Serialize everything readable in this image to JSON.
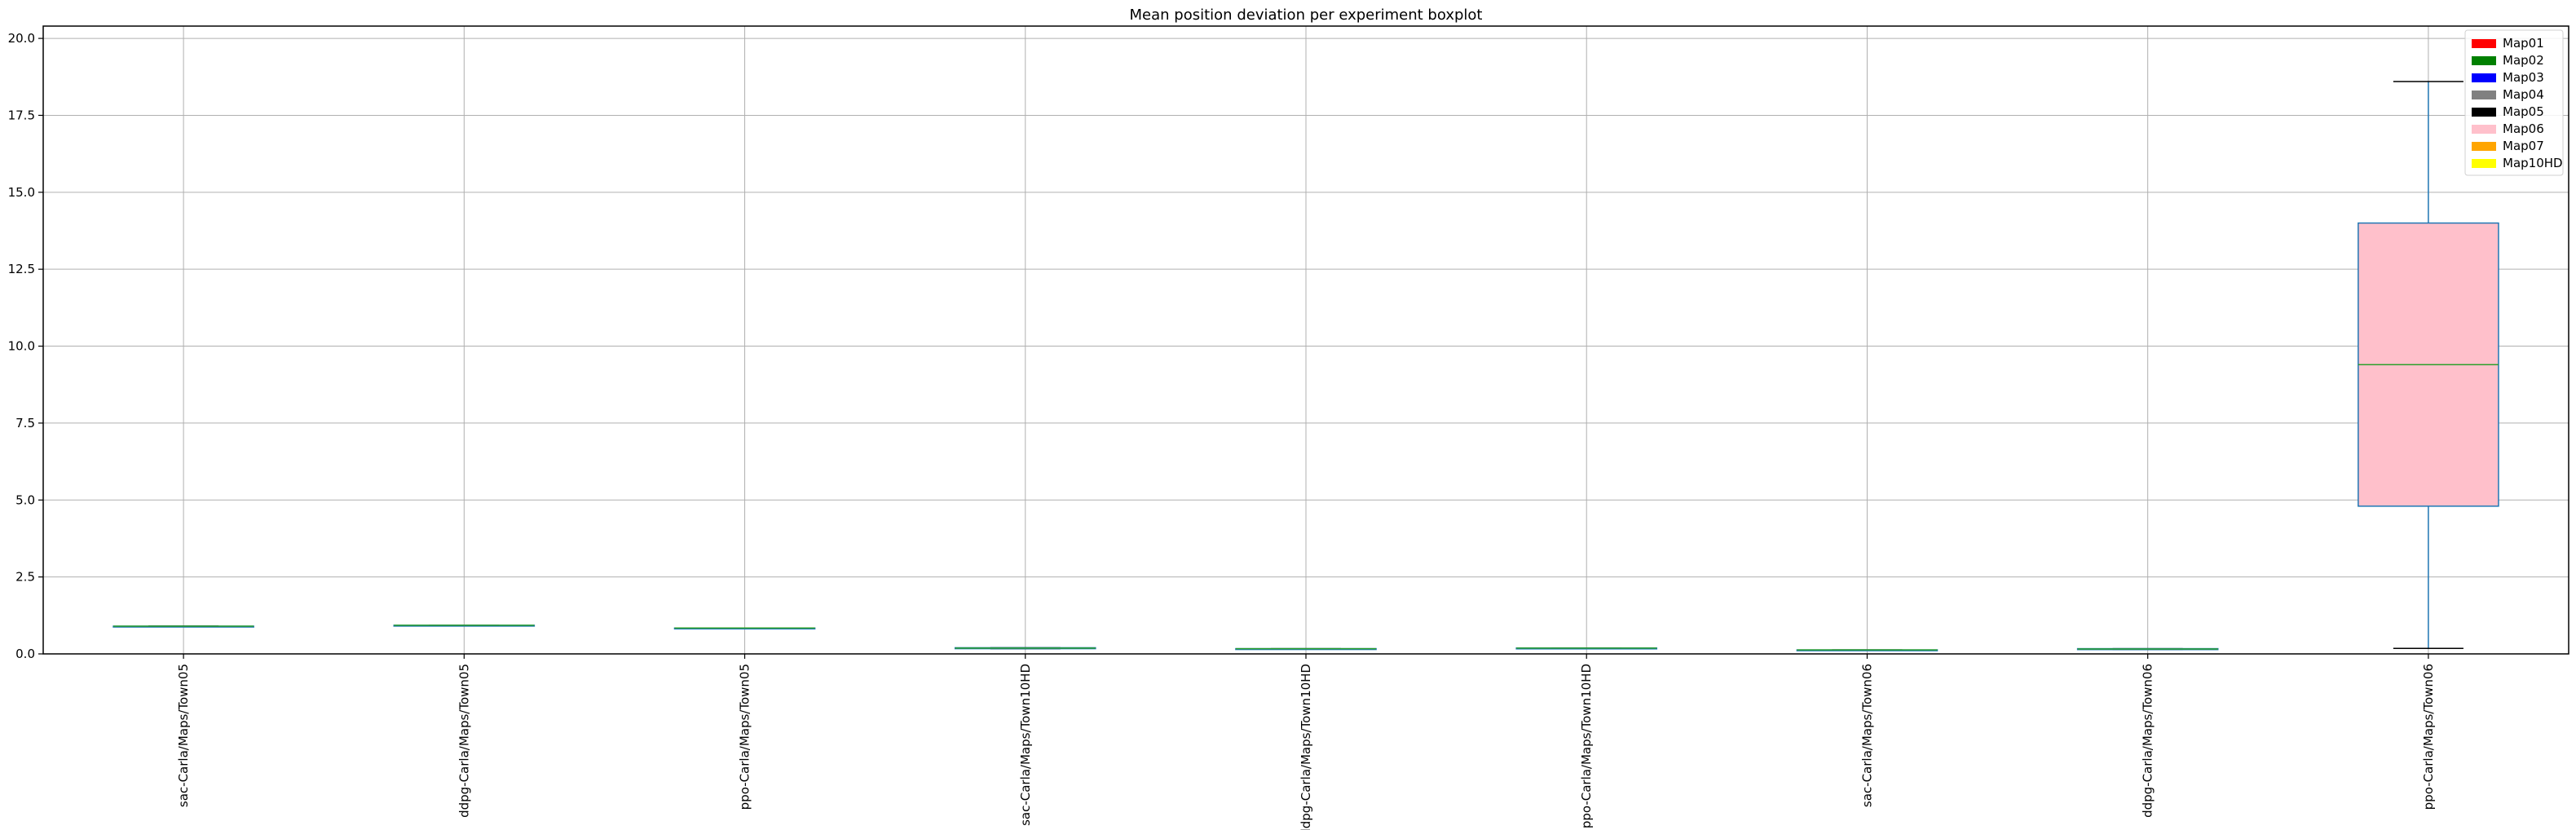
{
  "chart_data": {
    "type": "boxplot",
    "title": "Mean position deviation per experiment boxplot",
    "xlabel": "",
    "ylabel": "",
    "ylim": [
      0,
      20.4
    ],
    "yticks": [
      0.0,
      2.5,
      5.0,
      7.5,
      10.0,
      12.5,
      15.0,
      17.5,
      20.0
    ],
    "ytick_labels": [
      "0.0",
      "2.5",
      "5.0",
      "7.5",
      "10.0",
      "12.5",
      "15.0",
      "17.5",
      "20.0"
    ],
    "grid": true,
    "legend_position": "top-right",
    "colors": {
      "Map01": "#ff0000",
      "Map02": "#008000",
      "Map03": "#0000ff",
      "Map04": "#808080",
      "Map05": "#000000",
      "Map06": "#ffc0cb",
      "Map07": "#ffa500",
      "Map10HD": "#ffff00"
    },
    "legend": [
      "Map01",
      "Map02",
      "Map03",
      "Map04",
      "Map05",
      "Map06",
      "Map07",
      "Map10HD"
    ],
    "boxes": [
      {
        "label": "sac-Carla/Maps/Town05",
        "map": "Map05",
        "whisker_low": 0.9,
        "q1": 0.9,
        "median": 0.9,
        "q3": 0.9,
        "whisker_high": 0.9
      },
      {
        "label": "ddpg-Carla/Maps/Town05",
        "map": "Map05",
        "whisker_low": 0.93,
        "q1": 0.93,
        "median": 0.93,
        "q3": 0.93,
        "whisker_high": 0.93
      },
      {
        "label": "ppo-Carla/Maps/Town05",
        "map": "Map05",
        "whisker_low": 0.84,
        "q1": 0.84,
        "median": 0.84,
        "q3": 0.84,
        "whisker_high": 0.84
      },
      {
        "label": "sac-Carla/Maps/Town10HD",
        "map": "Map10HD",
        "whisker_low": 0.17,
        "q1": 0.17,
        "median": 0.19,
        "q3": 0.2,
        "whisker_high": 0.2
      },
      {
        "label": "ddpg-Carla/Maps/Town10HD",
        "map": "Map10HD",
        "whisker_low": 0.16,
        "q1": 0.16,
        "median": 0.17,
        "q3": 0.17,
        "whisker_high": 0.17
      },
      {
        "label": "ppo-Carla/Maps/Town10HD",
        "map": "Map10HD",
        "whisker_low": 0.19,
        "q1": 0.19,
        "median": 0.19,
        "q3": 0.19,
        "whisker_high": 0.19
      },
      {
        "label": "sac-Carla/Maps/Town06",
        "map": "Map06",
        "whisker_low": 0.12,
        "q1": 0.12,
        "median": 0.13,
        "q3": 0.13,
        "whisker_high": 0.13
      },
      {
        "label": "ddpg-Carla/Maps/Town06",
        "map": "Map06",
        "whisker_low": 0.14,
        "q1": 0.14,
        "median": 0.16,
        "q3": 0.17,
        "whisker_high": 0.17
      },
      {
        "label": "ppo-Carla/Maps/Town06",
        "map": "Map06",
        "whisker_low": 0.18,
        "q1": 4.8,
        "median": 9.4,
        "q3": 14.0,
        "whisker_high": 18.6
      }
    ]
  }
}
